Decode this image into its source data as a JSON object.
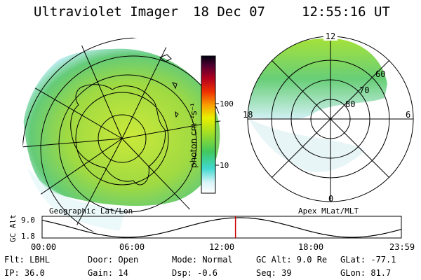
{
  "header": {
    "title": "Ultraviolet Imager",
    "date": "18 Dec 07",
    "time": "12:55:16 UT"
  },
  "colorbar": {
    "unit_label": "photon cm⁻²s⁻¹",
    "ticks": [
      "100",
      "10"
    ]
  },
  "left_panel": {
    "label": "Geographic Lat/Lon"
  },
  "right_panel": {
    "label": "Apex MLat/MLT",
    "mlt_labels": {
      "top": "12",
      "left": "18",
      "right": "6",
      "bottom": "0"
    },
    "lat_labels": [
      "60",
      "70",
      "80"
    ]
  },
  "altitude_plot": {
    "ylabel": "GC Alt",
    "yticks": [
      "9.0",
      "1.8"
    ],
    "xticks": [
      "00:00",
      "06:00",
      "12:00",
      "18:00",
      "23:59"
    ],
    "marker_hour": 12.92,
    "marker_color": "#cc0000"
  },
  "status": {
    "flt": "Flt: LBHL",
    "ip": "IP: 36.0",
    "door": "Door: Open",
    "gain": "Gain: 14",
    "mode": "Mode: Normal",
    "dsp": "Dsp:    -0.6",
    "gcalt": "GC Alt: 9.0 Re",
    "seq": "Seq: 39",
    "glat": "GLat: -77.1",
    "glon": "GLon:  81.7"
  }
}
